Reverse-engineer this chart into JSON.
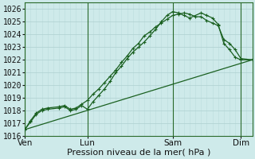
{
  "xlabel": "Pression niveau de la mer( hPa )",
  "ylim": [
    1016,
    1026.5
  ],
  "xlim": [
    0,
    20
  ],
  "bg_color": "#ceeaea",
  "grid_major_color": "#aed0d0",
  "grid_minor_color": "#bcdcdc",
  "line_color": "#1a6020",
  "vline_color": "#2a6a2a",
  "xtick_positions": [
    0,
    5.5,
    13,
    19
  ],
  "xtick_labels": [
    "Ven",
    "Lun",
    "Sam",
    "Dim"
  ],
  "ytick_positions": [
    1016,
    1017,
    1018,
    1019,
    1020,
    1021,
    1022,
    1023,
    1024,
    1025,
    1026
  ],
  "vline_positions": [
    0,
    5.5,
    13,
    19
  ],
  "line1_x": [
    0,
    0.5,
    1.0,
    1.5,
    2.0,
    3.0,
    3.5,
    4.0,
    4.5,
    5.0,
    5.5,
    6.0,
    6.5,
    7.0,
    7.5,
    8.0,
    8.5,
    9.0,
    9.5,
    10.0,
    10.5,
    11.0,
    11.5,
    12.0,
    12.5,
    13.0,
    13.5,
    14.0,
    14.5,
    15.0,
    15.5,
    16.0,
    16.5,
    17.0,
    17.5,
    18.0,
    18.5,
    19.0,
    20.0
  ],
  "line1_y": [
    1016.5,
    1017.2,
    1017.8,
    1018.1,
    1018.2,
    1018.3,
    1018.4,
    1018.1,
    1018.2,
    1018.5,
    1018.8,
    1019.3,
    1019.7,
    1020.2,
    1020.7,
    1021.2,
    1021.8,
    1022.3,
    1022.9,
    1023.3,
    1023.9,
    1024.2,
    1024.6,
    1024.9,
    1025.2,
    1025.5,
    1025.6,
    1025.7,
    1025.6,
    1025.4,
    1025.4,
    1025.1,
    1024.9,
    1024.7,
    1023.6,
    1023.3,
    1022.8,
    1022.1,
    1022.0
  ],
  "line2_x": [
    0,
    0.5,
    1.0,
    1.5,
    2.0,
    3.0,
    3.5,
    4.0,
    4.5,
    5.0,
    5.5,
    6.0,
    6.5,
    7.0,
    7.5,
    8.0,
    8.5,
    9.0,
    9.5,
    10.0,
    10.5,
    11.0,
    11.5,
    12.0,
    12.5,
    13.0,
    13.5,
    14.0,
    14.5,
    15.5,
    16.0,
    16.5,
    17.0,
    17.5,
    18.0,
    18.5,
    19.0,
    20.0
  ],
  "line2_y": [
    1016.5,
    1017.1,
    1017.7,
    1018.0,
    1018.1,
    1018.2,
    1018.3,
    1018.0,
    1018.1,
    1018.4,
    1018.1,
    1018.7,
    1019.2,
    1019.7,
    1020.3,
    1021.0,
    1021.5,
    1022.1,
    1022.6,
    1023.0,
    1023.4,
    1023.9,
    1024.4,
    1025.0,
    1025.5,
    1025.8,
    1025.7,
    1025.5,
    1025.3,
    1025.7,
    1025.5,
    1025.3,
    1024.8,
    1023.3,
    1022.8,
    1022.2,
    1022.0,
    1022.0
  ],
  "line3_x": [
    0,
    20
  ],
  "line3_y": [
    1016.5,
    1022.0
  ],
  "font_size_xlabel": 8,
  "font_size_tick": 7,
  "marker_size": 3.5
}
